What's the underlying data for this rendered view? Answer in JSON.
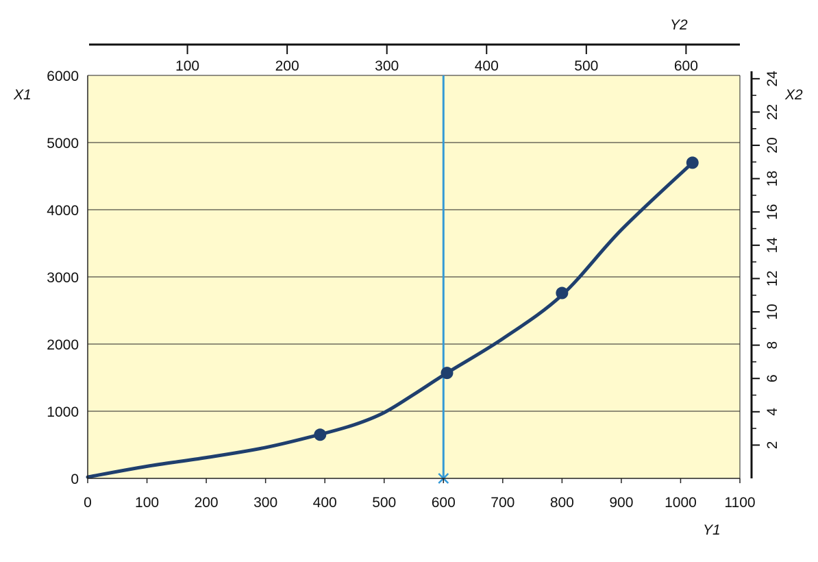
{
  "chart_data": {
    "type": "line",
    "title": "",
    "xlabel": "Y1",
    "ylabel": "X1",
    "top_axis_label": "Y2",
    "right_axis_label": "X2",
    "xlim": [
      0,
      1100
    ],
    "ylim": [
      0,
      6000
    ],
    "x_ticks": [
      "0",
      "100",
      "200",
      "300",
      "400",
      "500",
      "600",
      "700",
      "800",
      "900",
      "1000",
      "1100"
    ],
    "y_ticks": [
      "0",
      "1000",
      "2000",
      "3000",
      "4000",
      "5000",
      "6000"
    ],
    "top_ticks": [
      "100",
      "200",
      "300",
      "400",
      "500",
      "600"
    ],
    "top_lim": [
      0,
      654
    ],
    "right_ticks": [
      "2",
      "4",
      "6",
      "8",
      "10",
      "12",
      "14",
      "16",
      "18",
      "20",
      "22",
      "24"
    ],
    "right_lim": [
      0,
      24.2
    ],
    "grid": "horizontal",
    "series": [
      {
        "color": "#1f3f6e",
        "curve_x": [
          0,
          100,
          200,
          300,
          390,
          450,
          500,
          550,
          606,
          700,
          800,
          900,
          1020
        ],
        "curve_y": [
          20,
          180,
          310,
          460,
          650,
          800,
          980,
          1250,
          1570,
          2080,
          2730,
          3700,
          4700
        ],
        "markers_x": [
          392,
          606,
          800,
          1020
        ],
        "markers_y": [
          650,
          1570,
          2760,
          4700
        ]
      }
    ],
    "reference_line": {
      "x": 600,
      "color": "#3399d6",
      "marker": "x"
    },
    "plot_background": "#fffacd",
    "line_color": "#1f3f6e"
  }
}
